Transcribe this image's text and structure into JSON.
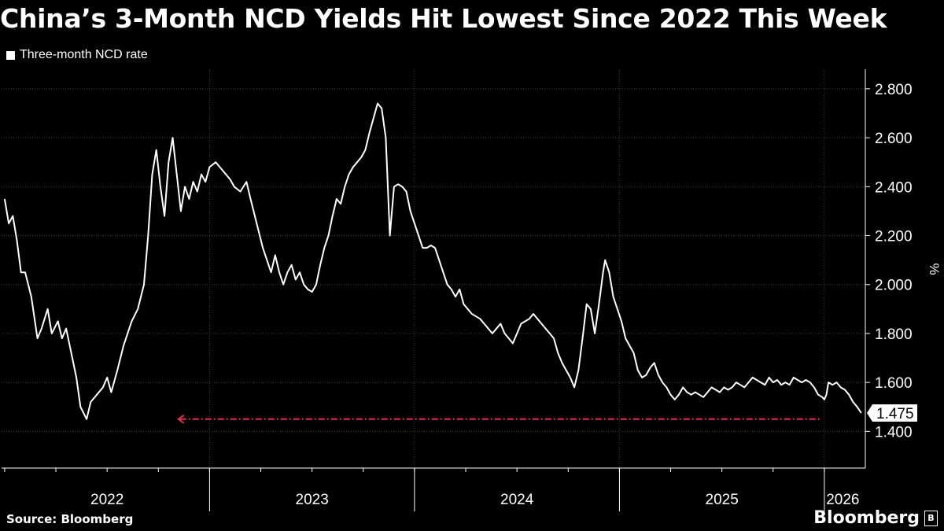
{
  "chart_data": {
    "type": "line",
    "title": "China’s 3-Month NCD Yields Hit Lowest Since 2022 This Week",
    "legend": [
      "Three-month NCD rate"
    ],
    "ylabel": "%",
    "ylim": [
      1.25,
      2.88
    ],
    "yticks": [
      "2.800",
      "2.600",
      "2.400",
      "2.200",
      "2.000",
      "1.800",
      "1.600",
      "1.400"
    ],
    "ytick_values": [
      2.8,
      2.6,
      2.4,
      2.2,
      2.0,
      1.8,
      1.6,
      1.4
    ],
    "xlim": [
      2021.985,
      2026.2
    ],
    "xticks": [
      "2022",
      "2023",
      "2024",
      "2025",
      "2026"
    ],
    "last_value_label": "1.475",
    "last_value": 1.475,
    "reference_line_value": 1.45,
    "series": [
      {
        "name": "Three-month NCD rate",
        "color": "#ffffff",
        "points": [
          [
            2022.0,
            2.35
          ],
          [
            2022.02,
            2.25
          ],
          [
            2022.04,
            2.28
          ],
          [
            2022.06,
            2.18
          ],
          [
            2022.08,
            2.05
          ],
          [
            2022.1,
            2.05
          ],
          [
            2022.13,
            1.95
          ],
          [
            2022.16,
            1.78
          ],
          [
            2022.18,
            1.82
          ],
          [
            2022.21,
            1.9
          ],
          [
            2022.23,
            1.8
          ],
          [
            2022.26,
            1.85
          ],
          [
            2022.28,
            1.78
          ],
          [
            2022.3,
            1.82
          ],
          [
            2022.33,
            1.7
          ],
          [
            2022.35,
            1.62
          ],
          [
            2022.37,
            1.5
          ],
          [
            2022.4,
            1.45
          ],
          [
            2022.42,
            1.52
          ],
          [
            2022.45,
            1.55
          ],
          [
            2022.48,
            1.58
          ],
          [
            2022.5,
            1.62
          ],
          [
            2022.52,
            1.56
          ],
          [
            2022.55,
            1.65
          ],
          [
            2022.58,
            1.75
          ],
          [
            2022.6,
            1.8
          ],
          [
            2022.62,
            1.85
          ],
          [
            2022.65,
            1.9
          ],
          [
            2022.68,
            2.0
          ],
          [
            2022.7,
            2.2
          ],
          [
            2022.72,
            2.45
          ],
          [
            2022.74,
            2.55
          ],
          [
            2022.76,
            2.4
          ],
          [
            2022.78,
            2.28
          ],
          [
            2022.8,
            2.5
          ],
          [
            2022.82,
            2.6
          ],
          [
            2022.84,
            2.45
          ],
          [
            2022.86,
            2.3
          ],
          [
            2022.88,
            2.4
          ],
          [
            2022.9,
            2.35
          ],
          [
            2022.92,
            2.42
          ],
          [
            2022.94,
            2.38
          ],
          [
            2022.96,
            2.45
          ],
          [
            2022.98,
            2.42
          ],
          [
            2023.0,
            2.48
          ],
          [
            2023.03,
            2.5
          ],
          [
            2023.06,
            2.47
          ],
          [
            2023.08,
            2.45
          ],
          [
            2023.1,
            2.43
          ],
          [
            2023.12,
            2.4
          ],
          [
            2023.15,
            2.38
          ],
          [
            2023.18,
            2.42
          ],
          [
            2023.2,
            2.35
          ],
          [
            2023.23,
            2.25
          ],
          [
            2023.26,
            2.15
          ],
          [
            2023.28,
            2.1
          ],
          [
            2023.3,
            2.05
          ],
          [
            2023.32,
            2.12
          ],
          [
            2023.34,
            2.05
          ],
          [
            2023.36,
            2.0
          ],
          [
            2023.38,
            2.05
          ],
          [
            2023.4,
            2.08
          ],
          [
            2023.42,
            2.02
          ],
          [
            2023.44,
            2.05
          ],
          [
            2023.46,
            2.0
          ],
          [
            2023.48,
            1.98
          ],
          [
            2023.5,
            1.97
          ],
          [
            2023.52,
            2.0
          ],
          [
            2023.54,
            2.08
          ],
          [
            2023.56,
            2.15
          ],
          [
            2023.58,
            2.2
          ],
          [
            2023.6,
            2.28
          ],
          [
            2023.62,
            2.35
          ],
          [
            2023.64,
            2.33
          ],
          [
            2023.66,
            2.4
          ],
          [
            2023.68,
            2.45
          ],
          [
            2023.7,
            2.48
          ],
          [
            2023.72,
            2.5
          ],
          [
            2023.74,
            2.52
          ],
          [
            2023.76,
            2.55
          ],
          [
            2023.78,
            2.62
          ],
          [
            2023.8,
            2.68
          ],
          [
            2023.82,
            2.74
          ],
          [
            2023.84,
            2.72
          ],
          [
            2023.86,
            2.6
          ],
          [
            2023.87,
            2.4
          ],
          [
            2023.88,
            2.2
          ],
          [
            2023.89,
            2.3
          ],
          [
            2023.9,
            2.4
          ],
          [
            2023.92,
            2.41
          ],
          [
            2023.94,
            2.4
          ],
          [
            2023.96,
            2.38
          ],
          [
            2023.98,
            2.3
          ],
          [
            2024.0,
            2.25
          ],
          [
            2024.02,
            2.2
          ],
          [
            2024.04,
            2.15
          ],
          [
            2024.06,
            2.15
          ],
          [
            2024.08,
            2.16
          ],
          [
            2024.1,
            2.15
          ],
          [
            2024.12,
            2.1
          ],
          [
            2024.14,
            2.05
          ],
          [
            2024.16,
            2.0
          ],
          [
            2024.18,
            1.98
          ],
          [
            2024.2,
            1.95
          ],
          [
            2024.22,
            1.98
          ],
          [
            2024.24,
            1.92
          ],
          [
            2024.26,
            1.9
          ],
          [
            2024.28,
            1.88
          ],
          [
            2024.3,
            1.87
          ],
          [
            2024.32,
            1.86
          ],
          [
            2024.34,
            1.84
          ],
          [
            2024.36,
            1.82
          ],
          [
            2024.38,
            1.8
          ],
          [
            2024.4,
            1.82
          ],
          [
            2024.42,
            1.84
          ],
          [
            2024.44,
            1.8
          ],
          [
            2024.46,
            1.78
          ],
          [
            2024.48,
            1.76
          ],
          [
            2024.5,
            1.8
          ],
          [
            2024.52,
            1.84
          ],
          [
            2024.54,
            1.85
          ],
          [
            2024.56,
            1.86
          ],
          [
            2024.58,
            1.88
          ],
          [
            2024.6,
            1.86
          ],
          [
            2024.62,
            1.84
          ],
          [
            2024.64,
            1.82
          ],
          [
            2024.66,
            1.8
          ],
          [
            2024.68,
            1.78
          ],
          [
            2024.7,
            1.72
          ],
          [
            2024.72,
            1.68
          ],
          [
            2024.74,
            1.65
          ],
          [
            2024.76,
            1.62
          ],
          [
            2024.78,
            1.58
          ],
          [
            2024.8,
            1.65
          ],
          [
            2024.82,
            1.78
          ],
          [
            2024.84,
            1.92
          ],
          [
            2024.86,
            1.9
          ],
          [
            2024.88,
            1.8
          ],
          [
            2024.9,
            1.92
          ],
          [
            2024.92,
            2.05
          ],
          [
            2024.93,
            2.1
          ],
          [
            2024.95,
            2.05
          ],
          [
            2024.97,
            1.95
          ],
          [
            2024.99,
            1.9
          ],
          [
            2025.01,
            1.85
          ],
          [
            2025.03,
            1.78
          ],
          [
            2025.05,
            1.75
          ],
          [
            2025.07,
            1.72
          ],
          [
            2025.09,
            1.65
          ],
          [
            2025.11,
            1.62
          ],
          [
            2025.13,
            1.63
          ],
          [
            2025.15,
            1.66
          ],
          [
            2025.17,
            1.68
          ],
          [
            2025.19,
            1.63
          ],
          [
            2025.21,
            1.6
          ],
          [
            2025.23,
            1.58
          ],
          [
            2025.25,
            1.55
          ],
          [
            2025.27,
            1.53
          ],
          [
            2025.29,
            1.55
          ],
          [
            2025.31,
            1.58
          ],
          [
            2025.33,
            1.56
          ],
          [
            2025.35,
            1.55
          ],
          [
            2025.37,
            1.56
          ],
          [
            2025.39,
            1.55
          ],
          [
            2025.41,
            1.54
          ],
          [
            2025.43,
            1.56
          ],
          [
            2025.45,
            1.58
          ],
          [
            2025.47,
            1.57
          ],
          [
            2025.49,
            1.56
          ],
          [
            2025.51,
            1.58
          ],
          [
            2025.53,
            1.57
          ],
          [
            2025.55,
            1.58
          ],
          [
            2025.57,
            1.6
          ],
          [
            2025.59,
            1.59
          ],
          [
            2025.61,
            1.58
          ],
          [
            2025.63,
            1.6
          ],
          [
            2025.65,
            1.62
          ],
          [
            2025.67,
            1.61
          ],
          [
            2025.69,
            1.6
          ],
          [
            2025.71,
            1.59
          ],
          [
            2025.73,
            1.62
          ],
          [
            2025.75,
            1.6
          ],
          [
            2025.77,
            1.61
          ],
          [
            2025.79,
            1.59
          ],
          [
            2025.81,
            1.6
          ],
          [
            2025.83,
            1.59
          ],
          [
            2025.85,
            1.62
          ],
          [
            2025.87,
            1.61
          ],
          [
            2025.89,
            1.6
          ],
          [
            2025.91,
            1.61
          ],
          [
            2025.93,
            1.6
          ],
          [
            2025.95,
            1.58
          ],
          [
            2025.97,
            1.55
          ],
          [
            2025.99,
            1.54
          ],
          [
            2026.0,
            1.53
          ],
          [
            2026.01,
            1.55
          ],
          [
            2026.02,
            1.6
          ],
          [
            2026.04,
            1.59
          ],
          [
            2026.06,
            1.6
          ],
          [
            2026.08,
            1.58
          ],
          [
            2026.1,
            1.57
          ],
          [
            2026.12,
            1.55
          ],
          [
            2026.14,
            1.52
          ],
          [
            2026.16,
            1.5
          ],
          [
            2026.18,
            1.475
          ]
        ]
      }
    ]
  },
  "footer": {
    "source": "Source: Bloomberg",
    "brand": "Bloomberg",
    "brand_icon": "B"
  }
}
